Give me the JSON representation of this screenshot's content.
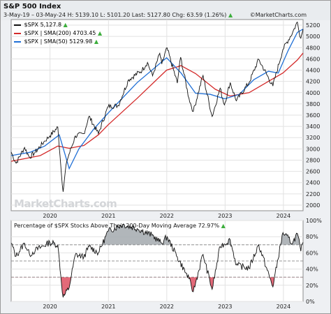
{
  "header": {
    "title": "S&P 500 Index",
    "info_line": "3-May-19 – 03-May-24  H: 5139.10  L: 5101.20  Last: 5127.80  Chg: 63.59 (1.26%)",
    "brand": "©MarketCharts.com",
    "watermark": "MarketCharts.com"
  },
  "legend": {
    "price": "$SPX 5,127.8",
    "sma200": "$SPX | SMA(200) 4703.45",
    "sma50": "$SPX | SMA(50) 5129.98",
    "up_symbol": "▲"
  },
  "panel2": {
    "title": "Percentage of $SPX Stocks Above Their 200-Day Moving Average 72.97%"
  },
  "colors": {
    "price": "#111111",
    "sma200": "#d42a2a",
    "sma50": "#1f6fd6",
    "up": "#3cae3c",
    "overbought_fill": "#a8aeb3",
    "oversold_fill": "#e05a6a"
  },
  "chart_data": [
    {
      "type": "line",
      "title": "S&P 500 Index",
      "x_ticks": [
        "2020",
        "2021",
        "2022",
        "2023",
        "2024"
      ],
      "y_ticks": [
        2000,
        2200,
        2400,
        2600,
        2800,
        3000,
        3200,
        3400,
        3600,
        3800,
        4000,
        4200,
        4400,
        4600,
        4800,
        5000,
        5200
      ],
      "ylim": [
        1900,
        5300
      ],
      "x_range": [
        "2019-05-03",
        "2024-05-03"
      ],
      "grid": true,
      "legend_position": "top-left",
      "series": [
        {
          "name": "$SPX",
          "points": [
            [
              "2019-05-03",
              2945
            ],
            [
              "2019-06-03",
              2745
            ],
            [
              "2019-07-26",
              3025
            ],
            [
              "2019-08-26",
              2850
            ],
            [
              "2019-10-01",
              2940
            ],
            [
              "2019-11-29",
              3140
            ],
            [
              "2019-12-31",
              3230
            ],
            [
              "2020-02-19",
              3386
            ],
            [
              "2020-03-23",
              2237
            ],
            [
              "2020-04-15",
              2780
            ],
            [
              "2020-06-08",
              3230
            ],
            [
              "2020-07-31",
              3270
            ],
            [
              "2020-09-02",
              3580
            ],
            [
              "2020-10-30",
              3270
            ],
            [
              "2020-12-31",
              3756
            ],
            [
              "2021-03-04",
              3770
            ],
            [
              "2021-05-07",
              4230
            ],
            [
              "2021-07-31",
              4400
            ],
            [
              "2021-09-02",
              4537
            ],
            [
              "2021-10-04",
              4300
            ],
            [
              "2021-11-18",
              4700
            ],
            [
              "2021-12-01",
              4510
            ],
            [
              "2022-01-03",
              4796
            ],
            [
              "2022-03-08",
              4170
            ],
            [
              "2022-03-29",
              4630
            ],
            [
              "2022-05-20",
              3900
            ],
            [
              "2022-06-16",
              3666
            ],
            [
              "2022-08-16",
              4305
            ],
            [
              "2022-10-12",
              3577
            ],
            [
              "2022-12-01",
              4080
            ],
            [
              "2022-12-28",
              3783
            ],
            [
              "2023-02-02",
              4180
            ],
            [
              "2023-03-13",
              3855
            ],
            [
              "2023-05-31",
              4180
            ],
            [
              "2023-07-31",
              4590
            ],
            [
              "2023-10-27",
              4117
            ],
            [
              "2023-12-29",
              4770
            ],
            [
              "2024-02-28",
              5070
            ],
            [
              "2024-03-28",
              5254
            ],
            [
              "2024-04-19",
              4967
            ],
            [
              "2024-05-03",
              5128
            ]
          ]
        },
        {
          "name": "$SPX | SMA(200)",
          "points": [
            [
              "2019-05-03",
              2780
            ],
            [
              "2019-11-01",
              2880
            ],
            [
              "2020-02-19",
              3050
            ],
            [
              "2020-04-30",
              3010
            ],
            [
              "2020-07-31",
              3060
            ],
            [
              "2020-10-30",
              3250
            ],
            [
              "2020-12-31",
              3430
            ],
            [
              "2021-06-30",
              3900
            ],
            [
              "2021-12-31",
              4400
            ],
            [
              "2022-03-31",
              4480
            ],
            [
              "2022-06-30",
              4340
            ],
            [
              "2022-10-31",
              4060
            ],
            [
              "2023-01-31",
              3940
            ],
            [
              "2023-05-31",
              4000
            ],
            [
              "2023-09-29",
              4200
            ],
            [
              "2023-12-29",
              4350
            ],
            [
              "2024-03-28",
              4580
            ],
            [
              "2024-05-03",
              4703.45
            ]
          ]
        },
        {
          "name": "$SPX | SMA(50)",
          "points": [
            [
              "2019-05-03",
              2880
            ],
            [
              "2019-08-30",
              2940
            ],
            [
              "2019-11-29",
              3050
            ],
            [
              "2020-02-28",
              3250
            ],
            [
              "2020-04-30",
              2650
            ],
            [
              "2020-06-30",
              3000
            ],
            [
              "2020-09-30",
              3350
            ],
            [
              "2020-12-31",
              3640
            ],
            [
              "2021-06-30",
              4180
            ],
            [
              "2021-12-31",
              4620
            ],
            [
              "2022-03-31",
              4350
            ],
            [
              "2022-06-30",
              3990
            ],
            [
              "2022-09-30",
              3970
            ],
            [
              "2022-12-30",
              3890
            ],
            [
              "2023-03-31",
              3970
            ],
            [
              "2023-06-30",
              4230
            ],
            [
              "2023-09-29",
              4380
            ],
            [
              "2023-11-30",
              4350
            ],
            [
              "2024-01-31",
              4750
            ],
            [
              "2024-03-28",
              5070
            ],
            [
              "2024-05-03",
              5129.98
            ]
          ]
        }
      ]
    },
    {
      "type": "area",
      "title": "Percentage of $SPX Stocks Above Their 200-Day Moving Average 72.97%",
      "x_ticks": [
        "2020",
        "2021",
        "2022",
        "2023",
        "2024"
      ],
      "y_ticks": [
        "0%",
        "20%",
        "40%",
        "60%",
        "80%",
        "100%"
      ],
      "ylim": [
        0,
        100
      ],
      "reference_lines": [
        70,
        50,
        30
      ],
      "grid": true,
      "series": [
        {
          "name": "Percentage of $SPX Stocks Above Their 200-Day Moving Average",
          "points": [
            [
              "2019-05-03",
              72
            ],
            [
              "2019-06-03",
              56
            ],
            [
              "2019-07-26",
              72
            ],
            [
              "2019-08-26",
              58
            ],
            [
              "2019-10-01",
              63
            ],
            [
              "2019-12-31",
              73
            ],
            [
              "2020-02-19",
              70
            ],
            [
              "2020-03-23",
              5
            ],
            [
              "2020-04-30",
              17
            ],
            [
              "2020-06-08",
              58
            ],
            [
              "2020-07-31",
              55
            ],
            [
              "2020-09-02",
              68
            ],
            [
              "2020-10-30",
              60
            ],
            [
              "2020-12-31",
              87
            ],
            [
              "2021-03-31",
              95
            ],
            [
              "2021-06-30",
              90
            ],
            [
              "2021-09-30",
              82
            ],
            [
              "2021-11-30",
              72
            ],
            [
              "2022-01-03",
              80
            ],
            [
              "2022-03-08",
              55
            ],
            [
              "2022-05-20",
              28
            ],
            [
              "2022-06-16",
              12
            ],
            [
              "2022-08-16",
              58
            ],
            [
              "2022-10-12",
              15
            ],
            [
              "2022-12-01",
              68
            ],
            [
              "2023-02-02",
              76
            ],
            [
              "2023-03-13",
              45
            ],
            [
              "2023-05-31",
              41
            ],
            [
              "2023-07-31",
              70
            ],
            [
              "2023-10-27",
              18
            ],
            [
              "2023-12-29",
              85
            ],
            [
              "2024-02-28",
              72
            ],
            [
              "2024-03-28",
              84
            ],
            [
              "2024-04-19",
              62
            ],
            [
              "2024-05-03",
              72.97
            ]
          ]
        }
      ]
    }
  ]
}
